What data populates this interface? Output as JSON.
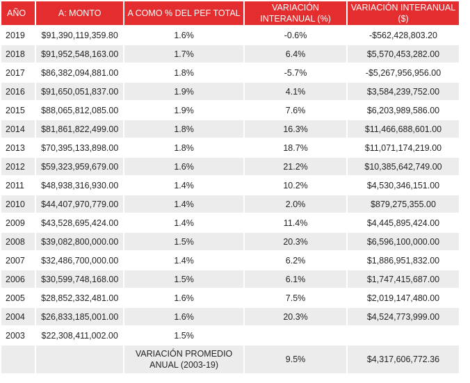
{
  "table": {
    "headers": [
      "AÑO",
      "A: MONTO",
      "A COMO % DEL  PEF TOTAL",
      "VARIACIÓN INTERANUAL (%)",
      "VARIACIÓN INTERANUAL ($)"
    ],
    "rows": [
      [
        "2019",
        "$91,390,119,359.80",
        "1.6%",
        "-0.6%",
        "-$562,428,803.20"
      ],
      [
        "2018",
        "$91,952,548,163.00",
        "1.7%",
        "6.4%",
        "$5,570,453,282.00"
      ],
      [
        "2017",
        "$86,382,094,881.00",
        "1.8%",
        "-5.7%",
        "-$5,267,956,956.00"
      ],
      [
        "2016",
        "$91,650,051,837.00",
        "1.9%",
        "4.1%",
        "$3,584,239,752.00"
      ],
      [
        "2015",
        "$88,065,812,085.00",
        "1.9%",
        "7.6%",
        "$6,203,989,586.00"
      ],
      [
        "2014",
        "$81,861,822,499.00",
        "1.8%",
        "16.3%",
        "$11,466,688,601.00"
      ],
      [
        "2013",
        "$70,395,133,898.00",
        "1.8%",
        "18.7%",
        "$11,071,174,219.00"
      ],
      [
        "2012",
        "$59,323,959,679.00",
        "1.6%",
        "21.2%",
        "$10,385,642,749.00"
      ],
      [
        "2011",
        "$48,938,316,930.00",
        "1.4%",
        "10.2%",
        "$4,530,346,151.00"
      ],
      [
        "2010",
        "$44,407,970,779.00",
        "1.4%",
        "2.0%",
        "$879,275,355.00"
      ],
      [
        "2009",
        "$43,528,695,424.00",
        "1.4%",
        "11.4%",
        "$4,445,895,424.00"
      ],
      [
        "2008",
        "$39,082,800,000.00",
        "1.5%",
        "20.3%",
        "$6,596,100,000.00"
      ],
      [
        "2007",
        "$32,486,700,000.00",
        "1.4%",
        "6.2%",
        "$1,886,951,832.00"
      ],
      [
        "2006",
        "$30,599,748,168.00",
        "1.5%",
        "6.1%",
        "$1,747,415,687.00"
      ],
      [
        "2005",
        "$28,852,332,481.00",
        "1.6%",
        "7.5%",
        "$2,019,147,480.00"
      ],
      [
        "2004",
        "$26,833,185,001.00",
        "1.6%",
        "20.3%",
        "$4,524,773,999.00"
      ],
      [
        "2003",
        "$22,308,411,002.00",
        "1.5%",
        "",
        ""
      ]
    ],
    "footer": {
      "label": "VARIACIÓN  PROMEDIO ANUAL (2003-19)",
      "pct": "9.5%",
      "amount": "$4,317,606,772.36"
    }
  },
  "colors": {
    "header_bg": "#e42d2f",
    "header_text": "#ffffff",
    "stripe_bg": "#ececec"
  }
}
